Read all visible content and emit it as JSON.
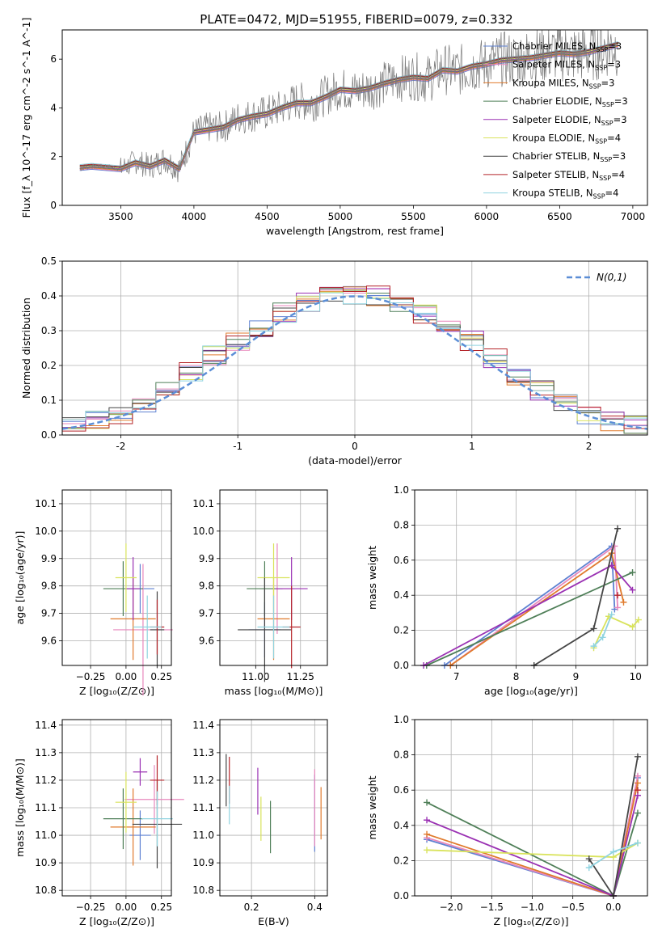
{
  "figure": {
    "title": "PLATE=0472, MJD=51955, FIBERID=0079, z=0.332"
  },
  "legend_labels": [
    "Chabrier MILES, N_SSP=3",
    "Salpeter MILES, N_SSP=3",
    "Kroupa MILES, N_SSP=3",
    "Chabrier ELODIE, N_SSP=3",
    "Salpeter ELODIE, N_SSP=3",
    "Kroupa ELODIE, N_SSP=4",
    "Chabrier STELIB, N_SSP=3",
    "Salpeter STELIB, N_SSP=4",
    "Kroupa STELIB, N_SSP=4"
  ],
  "chart_data": [
    {
      "id": "spectrum",
      "type": "line",
      "title": "PLATE=0472, MJD=51955, FIBERID=0079, z=0.332",
      "xlabel": "wavelength [Angstrom, rest frame]",
      "ylabel": "Flux [f_λ 10^-17 erg cm^-2 s^-1 A^-1]",
      "xlim": [
        3100,
        7100
      ],
      "ylim": [
        0,
        7.2
      ],
      "xticks": [
        3500,
        4000,
        4500,
        5000,
        5500,
        6000,
        6500,
        7000
      ],
      "yticks": [
        0,
        2,
        4,
        6
      ],
      "grid": false,
      "legend_position": "right",
      "series_colors": [
        "#5e81d2",
        "#e887bc",
        "#e07a2c",
        "#4f7f58",
        "#9a31b3",
        "#d9e35c",
        "#454545",
        "#b5252a",
        "#8fd3e0",
        "#7a7a7a"
      ],
      "data_series": {
        "name": "data",
        "color": "#7a7a7a",
        "x": [
          3220,
          3300,
          3400,
          3500,
          3600,
          3700,
          3800,
          3900,
          4000,
          4100,
          4200,
          4300,
          4400,
          4500,
          4600,
          4700,
          4800,
          4900,
          5000,
          5100,
          5200,
          5300,
          5400,
          5500,
          5600,
          5700,
          5800,
          5900,
          6000,
          6100,
          6200,
          6300,
          6400,
          6500,
          6600,
          6700,
          6800,
          6900
        ],
        "y": [
          1.5,
          1.6,
          1.6,
          1.5,
          1.8,
          1.6,
          1.9,
          1.5,
          3.0,
          3.2,
          3.2,
          3.6,
          3.7,
          3.8,
          4.0,
          4.3,
          4.2,
          4.5,
          4.8,
          4.7,
          4.8,
          5.0,
          5.2,
          5.3,
          5.2,
          5.6,
          5.5,
          5.7,
          5.8,
          6.0,
          6.0,
          6.1,
          6.2,
          6.3,
          6.2,
          6.3,
          6.5,
          6.6
        ]
      },
      "model_series": [
        {
          "name": "Chabrier MILES, N_SSP=3",
          "color": "#5e81d2"
        },
        {
          "name": "Salpeter MILES, N_SSP=3",
          "color": "#e887bc"
        },
        {
          "name": "Kroupa MILES, N_SSP=3",
          "color": "#e07a2c"
        },
        {
          "name": "Chabrier ELODIE, N_SSP=3",
          "color": "#4f7f58"
        },
        {
          "name": "Salpeter ELODIE, N_SSP=3",
          "color": "#9a31b3"
        },
        {
          "name": "Kroupa ELODIE, N_SSP=4",
          "color": "#d9e35c"
        },
        {
          "name": "Chabrier STELIB, N_SSP=3",
          "color": "#454545"
        },
        {
          "name": "Salpeter STELIB, N_SSP=4",
          "color": "#b5252a"
        },
        {
          "name": "Kroupa STELIB, N_SSP=4",
          "color": "#8fd3e0"
        }
      ],
      "model_curve": {
        "x": [
          3220,
          3300,
          3400,
          3500,
          3600,
          3700,
          3800,
          3900,
          4000,
          4100,
          4200,
          4300,
          4400,
          4500,
          4600,
          4700,
          4800,
          4900,
          5000,
          5100,
          5200,
          5300,
          5400,
          5500,
          5600,
          5700,
          5800,
          5900,
          6000,
          6100,
          6200,
          6300,
          6400,
          6500,
          6600,
          6700,
          6800,
          6900
        ],
        "y": [
          1.55,
          1.6,
          1.55,
          1.5,
          1.75,
          1.6,
          1.85,
          1.5,
          3.0,
          3.1,
          3.2,
          3.5,
          3.65,
          3.75,
          4.0,
          4.2,
          4.2,
          4.45,
          4.75,
          4.7,
          4.8,
          5.0,
          5.15,
          5.25,
          5.2,
          5.55,
          5.5,
          5.7,
          5.8,
          5.95,
          6.0,
          6.05,
          6.15,
          6.25,
          6.2,
          6.3,
          6.45,
          6.6
        ]
      }
    },
    {
      "id": "residuals",
      "type": "line",
      "xlabel": "(data-model)/error",
      "ylabel": "Normed distribution",
      "xlim": [
        -2.5,
        2.5
      ],
      "ylim": [
        0,
        0.5
      ],
      "xticks": [
        -2,
        -1,
        0,
        1,
        2
      ],
      "yticks": [
        0.0,
        0.1,
        0.2,
        0.3,
        0.4,
        0.5
      ],
      "grid": true,
      "legend_position": "top-right",
      "legend": [
        "N(0,1)"
      ],
      "bin_edges": [
        -2.5,
        -2.3,
        -2.1,
        -1.9,
        -1.7,
        -1.5,
        -1.3,
        -1.1,
        -0.9,
        -0.7,
        -0.5,
        -0.3,
        -0.1,
        0.1,
        0.3,
        0.5,
        0.7,
        0.9,
        1.1,
        1.3,
        1.5,
        1.7,
        1.9,
        2.1,
        2.3,
        2.5
      ],
      "histogram_colors": [
        "#5e81d2",
        "#e887bc",
        "#e07a2c",
        "#4f7f58",
        "#9a31b3",
        "#d9e35c",
        "#454545",
        "#b5252a",
        "#8fd3e0"
      ],
      "histogram_density": [
        0.03,
        0.04,
        0.06,
        0.09,
        0.14,
        0.18,
        0.23,
        0.27,
        0.31,
        0.35,
        0.38,
        0.4,
        0.4,
        0.4,
        0.38,
        0.35,
        0.31,
        0.27,
        0.22,
        0.17,
        0.13,
        0.09,
        0.06,
        0.04,
        0.03
      ],
      "gaussian": {
        "name": "N(0,1)",
        "color": "#5b8ed6",
        "mean": 0,
        "sigma": 1
      }
    },
    {
      "id": "age-vs-Z",
      "type": "scatter",
      "xlabel": "Z [log10(Z/Z⊙)]",
      "ylabel": "age [log10(age/yr)]",
      "xlim": [
        -0.45,
        0.32
      ],
      "ylim": [
        9.51,
        10.15
      ],
      "xticks": [
        -0.25,
        0.0,
        0.25
      ],
      "xticklabels": [
        "−0.25",
        "0.00",
        "0.25"
      ],
      "yticks": [
        9.6,
        9.7,
        9.8,
        9.9,
        10.0,
        10.1
      ],
      "grid": true,
      "points": [
        {
          "x": 0.1,
          "y": 9.79,
          "xerr": 0.2,
          "yerr": 0.18,
          "color": "#5e81d2"
        },
        {
          "x": 0.12,
          "y": 9.64,
          "xerr": 0.42,
          "yerr": 0.48,
          "color": "#e887bc"
        },
        {
          "x": 0.05,
          "y": 9.68,
          "xerr": 0.32,
          "yerr": 0.3,
          "color": "#e07a2c"
        },
        {
          "x": -0.02,
          "y": 9.79,
          "xerr": 0.28,
          "yerr": 0.2,
          "color": "#4f7f58"
        },
        {
          "x": 0.05,
          "y": 9.79,
          "xerr": 0.1,
          "yerr": 0.23,
          "color": "#9a31b3"
        },
        {
          "x": 0.0,
          "y": 9.83,
          "xerr": 0.15,
          "yerr": 0.25,
          "color": "#d9e35c"
        },
        {
          "x": 0.22,
          "y": 9.64,
          "xerr": 0.1,
          "yerr": 0.28,
          "color": "#454545"
        },
        {
          "x": 0.22,
          "y": 9.65,
          "xerr": 0.1,
          "yerr": 0.2,
          "color": "#b5252a"
        },
        {
          "x": 0.15,
          "y": 9.65,
          "xerr": 0.2,
          "yerr": 0.23,
          "color": "#8fd3e0"
        }
      ]
    },
    {
      "id": "age-vs-mass",
      "type": "scatter",
      "xlabel": "mass [log10(M/M⊙)]",
      "ylabel": "",
      "xlim": [
        10.8,
        11.4
      ],
      "ylim": [
        9.51,
        10.15
      ],
      "xticks": [
        11.0,
        11.25
      ],
      "xticklabels": [
        "11.00",
        "11.25"
      ],
      "yticks": [
        9.6,
        9.7,
        9.8,
        9.9,
        10.0,
        10.1
      ],
      "grid": true,
      "points": [
        {
          "x": 11.05,
          "y": 9.64,
          "xerr": 0.18,
          "yerr": 0.2,
          "color": "#5e81d2"
        },
        {
          "x": 11.12,
          "y": 9.79,
          "xerr": 0.2,
          "yerr": 0.33,
          "color": "#e887bc"
        },
        {
          "x": 11.1,
          "y": 9.68,
          "xerr": 0.18,
          "yerr": 0.3,
          "color": "#e07a2c"
        },
        {
          "x": 11.05,
          "y": 9.79,
          "xerr": 0.2,
          "yerr": 0.2,
          "color": "#4f7f58"
        },
        {
          "x": 11.2,
          "y": 9.79,
          "xerr": 0.18,
          "yerr": 0.23,
          "color": "#9a31b3"
        },
        {
          "x": 11.1,
          "y": 9.83,
          "xerr": 0.18,
          "yerr": 0.25,
          "color": "#d9e35c"
        },
        {
          "x": 11.05,
          "y": 9.64,
          "xerr": 0.3,
          "yerr": 0.38,
          "color": "#454545"
        },
        {
          "x": 11.2,
          "y": 9.65,
          "xerr": 0.1,
          "yerr": 0.3,
          "color": "#b5252a"
        },
        {
          "x": 11.1,
          "y": 9.65,
          "xerr": 0.18,
          "yerr": 0.23,
          "color": "#8fd3e0"
        }
      ]
    },
    {
      "id": "massweight-vs-age",
      "type": "line",
      "xlabel": "age [log10(age/yr)]",
      "ylabel": "mass weight",
      "xlim": [
        6.3,
        10.2
      ],
      "ylim": [
        0,
        1.0
      ],
      "xticks": [
        7,
        8,
        9,
        10
      ],
      "yticks": [
        0.0,
        0.2,
        0.4,
        0.6,
        0.8,
        1.0
      ],
      "grid": true,
      "series": [
        {
          "color": "#5e81d2",
          "x": [
            6.8,
            9.6,
            9.65
          ],
          "y": [
            0.0,
            0.68,
            0.32
          ]
        },
        {
          "color": "#e887bc",
          "x": [
            6.9,
            9.65,
            9.7
          ],
          "y": [
            0.0,
            0.68,
            0.33
          ]
        },
        {
          "color": "#e07a2c",
          "x": [
            6.9,
            9.6,
            9.8
          ],
          "y": [
            0.0,
            0.64,
            0.36
          ]
        },
        {
          "color": "#4f7f58",
          "x": [
            6.5,
            9.95
          ],
          "y": [
            0.0,
            0.53
          ]
        },
        {
          "color": "#9a31b3",
          "x": [
            6.45,
            9.6,
            9.95
          ],
          "y": [
            0.0,
            0.57,
            0.43
          ]
        },
        {
          "color": "#d9e35c",
          "x": [
            9.3,
            9.55,
            9.95,
            10.05
          ],
          "y": [
            0.1,
            0.28,
            0.22,
            0.26
          ]
        },
        {
          "color": "#454545",
          "x": [
            8.3,
            9.3,
            9.7
          ],
          "y": [
            0.0,
            0.21,
            0.78
          ]
        },
        {
          "color": "#b5252a",
          "x": [
            9.7
          ],
          "y": [
            0.4
          ]
        },
        {
          "color": "#8fd3e0",
          "x": [
            9.3,
            9.45,
            9.6
          ],
          "y": [
            0.11,
            0.16,
            0.29
          ]
        }
      ]
    },
    {
      "id": "mass-vs-Z",
      "type": "scatter",
      "xlabel": "Z [log10(Z/Z⊙)]",
      "ylabel": "mass [log10(M/M⊙)]",
      "xlim": [
        -0.45,
        0.32
      ],
      "ylim": [
        10.78,
        11.42
      ],
      "xticks": [
        -0.25,
        0.0,
        0.25
      ],
      "xticklabels": [
        "−0.25",
        "0.00",
        "0.25"
      ],
      "yticks": [
        10.8,
        10.9,
        11.0,
        11.1,
        11.2,
        11.3,
        11.4
      ],
      "grid": true,
      "points": [
        {
          "x": 0.1,
          "y": 11.0,
          "xerr": 0.15,
          "yerr": 0.18,
          "color": "#5e81d2"
        },
        {
          "x": 0.2,
          "y": 11.13,
          "xerr": 0.42,
          "yerr": 0.25,
          "color": "#e887bc"
        },
        {
          "x": 0.05,
          "y": 11.03,
          "xerr": 0.32,
          "yerr": 0.28,
          "color": "#e07a2c"
        },
        {
          "x": -0.02,
          "y": 11.06,
          "xerr": 0.28,
          "yerr": 0.22,
          "color": "#4f7f58"
        },
        {
          "x": 0.1,
          "y": 11.23,
          "xerr": 0.1,
          "yerr": 0.1,
          "color": "#9a31b3"
        },
        {
          "x": 0.0,
          "y": 11.12,
          "xerr": 0.15,
          "yerr": 0.22,
          "color": "#d9e35c"
        },
        {
          "x": 0.22,
          "y": 11.04,
          "xerr": 0.35,
          "yerr": 0.32,
          "color": "#454545"
        },
        {
          "x": 0.22,
          "y": 11.2,
          "xerr": 0.1,
          "yerr": 0.18,
          "color": "#b5252a"
        },
        {
          "x": 0.22,
          "y": 11.06,
          "xerr": 0.22,
          "yerr": 0.2,
          "color": "#8fd3e0"
        }
      ]
    },
    {
      "id": "mass-vs-ebv",
      "type": "scatter",
      "xlabel": "E(B-V)",
      "ylabel": "",
      "xlim": [
        0.1,
        0.44
      ],
      "ylim": [
        10.78,
        11.42
      ],
      "xticks": [
        0.2,
        0.4
      ],
      "xticklabels": [
        "0.2",
        "0.4"
      ],
      "yticks": [
        10.8,
        10.9,
        11.0,
        11.1,
        11.2,
        11.3,
        11.4
      ],
      "grid": true,
      "points": [
        {
          "x": 0.4,
          "y": 11.08,
          "yerr": 0.28,
          "color": "#5e81d2"
        },
        {
          "x": 0.4,
          "y": 11.1,
          "yerr": 0.28,
          "color": "#e887bc"
        },
        {
          "x": 0.42,
          "y": 11.08,
          "yerr": 0.19,
          "color": "#e07a2c"
        },
        {
          "x": 0.26,
          "y": 11.03,
          "yerr": 0.19,
          "color": "#4f7f58"
        },
        {
          "x": 0.22,
          "y": 11.16,
          "yerr": 0.17,
          "color": "#9a31b3"
        },
        {
          "x": 0.23,
          "y": 11.06,
          "yerr": 0.16,
          "color": "#d9e35c"
        },
        {
          "x": 0.12,
          "y": 11.2,
          "yerr": 0.19,
          "color": "#454545"
        },
        {
          "x": 0.13,
          "y": 11.2,
          "yerr": 0.17,
          "color": "#b5252a"
        },
        {
          "x": 0.13,
          "y": 11.11,
          "yerr": 0.14,
          "color": "#8fd3e0"
        }
      ]
    },
    {
      "id": "massweight-vs-Z",
      "type": "line",
      "xlabel": "Z [log10(Z/Z⊙)]",
      "ylabel": "mass weight",
      "xlim": [
        -2.45,
        0.42
      ],
      "ylim": [
        0,
        1.0
      ],
      "xticks": [
        -2.0,
        -1.5,
        -1.0,
        -0.5,
        0.0
      ],
      "xticklabels": [
        "−2.0",
        "−1.5",
        "−1.0",
        "−0.5",
        "0.0"
      ],
      "yticks": [
        0.0,
        0.2,
        0.4,
        0.6,
        0.8,
        1.0
      ],
      "grid": true,
      "series": [
        {
          "color": "#5e81d2",
          "x": [
            -2.3,
            0.0,
            0.3
          ],
          "y": [
            0.32,
            0.0,
            0.67
          ]
        },
        {
          "color": "#e887bc",
          "x": [
            -2.3,
            0.0,
            0.3
          ],
          "y": [
            0.33,
            0.0,
            0.68
          ]
        },
        {
          "color": "#e07a2c",
          "x": [
            -2.3,
            0.0,
            0.3
          ],
          "y": [
            0.35,
            0.0,
            0.64
          ]
        },
        {
          "color": "#4f7f58",
          "x": [
            -2.3,
            0.0,
            0.3
          ],
          "y": [
            0.53,
            0.0,
            0.47
          ]
        },
        {
          "color": "#9a31b3",
          "x": [
            -2.3,
            0.0,
            0.3
          ],
          "y": [
            0.43,
            0.0,
            0.57
          ]
        },
        {
          "color": "#d9e35c",
          "x": [
            -2.3,
            0.0,
            0.3
          ],
          "y": [
            0.26,
            0.22,
            0.3
          ]
        },
        {
          "color": "#454545",
          "x": [
            -0.3,
            0.0,
            0.3
          ],
          "y": [
            0.21,
            0.0,
            0.79
          ]
        },
        {
          "color": "#b5252a",
          "x": [
            0.3
          ],
          "y": [
            0.6
          ]
        },
        {
          "color": "#8fd3e0",
          "x": [
            -0.3,
            0.0,
            0.3
          ],
          "y": [
            0.16,
            0.25,
            0.3
          ]
        }
      ]
    }
  ]
}
